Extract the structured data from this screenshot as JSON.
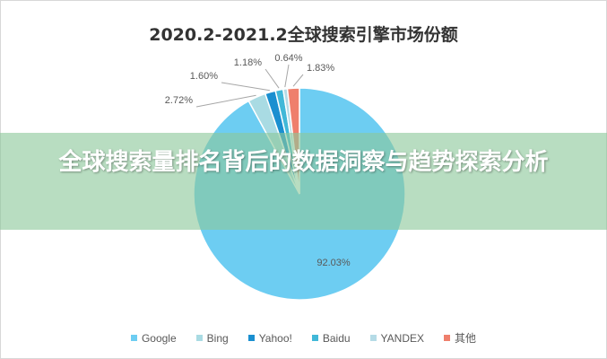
{
  "chart_data": {
    "type": "pie",
    "title": "2020.2-2021.2全球搜索引擎市场份额",
    "legend_position": "bottom",
    "slices": [
      {
        "name": "Google",
        "value": 92.03,
        "label": "92.03%",
        "color": "#6dcdf2"
      },
      {
        "name": "Bing",
        "value": 2.72,
        "label": "2.72%",
        "color": "#a9dbe3"
      },
      {
        "name": "Yahoo!",
        "value": 1.6,
        "label": "1.60%",
        "color": "#1a8fd0"
      },
      {
        "name": "Baidu",
        "value": 1.18,
        "label": "1.18%",
        "color": "#41b8d8"
      },
      {
        "name": "YANDEX",
        "value": 0.64,
        "label": "0.64%",
        "color": "#b5dbe6"
      },
      {
        "name": "其他",
        "value": 1.83,
        "label": "1.83%",
        "color": "#ef7f6c"
      }
    ]
  },
  "banner": {
    "text": "全球搜索量排名背后的数据洞察与趋势探索分析"
  }
}
